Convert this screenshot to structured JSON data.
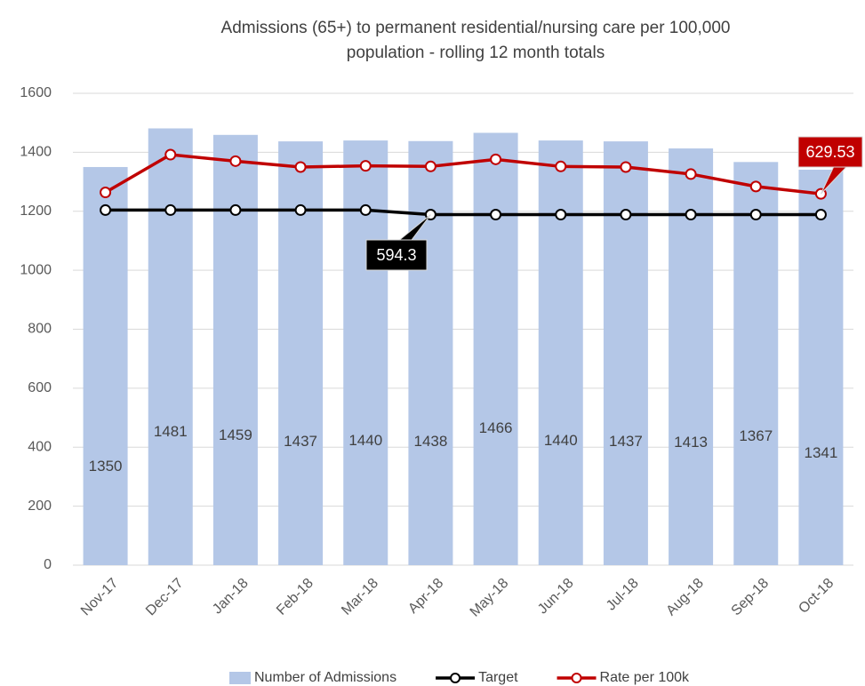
{
  "chart_data": {
    "type": "bar-line",
    "title": "Admissions (65+) to permanent residential/nursing care per 100,000 population - rolling 12 month totals",
    "categories": [
      "Nov-17",
      "Dec-17",
      "Jan-18",
      "Feb-18",
      "Mar-18",
      "Apr-18",
      "May-18",
      "Jun-18",
      "Jul-18",
      "Aug-18",
      "Sep-18",
      "Oct-18"
    ],
    "series": [
      {
        "name": "Number of Admissions",
        "type": "bar",
        "color": "#b4c7e7",
        "values": [
          1350,
          1481,
          1459,
          1437,
          1440,
          1438,
          1466,
          1440,
          1437,
          1413,
          1367,
          1341
        ]
      },
      {
        "name": "Target",
        "type": "line",
        "axis": "y2",
        "color": "#000000",
        "values": [
          602,
          602,
          602,
          602,
          602,
          594.3,
          594.3,
          594.3,
          594.3,
          594.3,
          594.3,
          594.3
        ]
      },
      {
        "name": "Rate per 100k",
        "type": "line",
        "axis": "y2",
        "color": "#c00000",
        "values": [
          632,
          696,
          685,
          675,
          677,
          676,
          688,
          676,
          675,
          663,
          642,
          629.53
        ]
      }
    ],
    "ylim": [
      0,
      1600
    ],
    "yticks": [
      0,
      200,
      400,
      600,
      800,
      1000,
      1200,
      1400,
      1600
    ],
    "y2lim": [
      0,
      800
    ],
    "grid": true,
    "legend": "bottom"
  }
}
